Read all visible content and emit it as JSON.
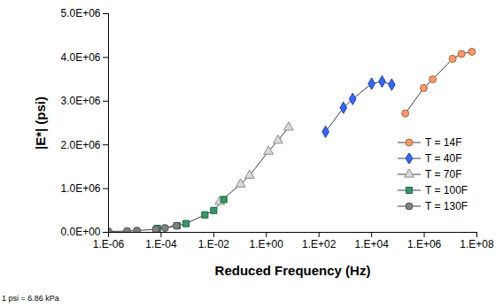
{
  "chart_data": {
    "type": "line",
    "x_label": "Reduced Frequency (Hz)",
    "y_label": "|E*| (psi)",
    "caption": "1 psi = 6.86 kPa",
    "log": "x",
    "grid": false,
    "legend": "right",
    "xlim": [
      1e-06,
      100000000
    ],
    "xticks": [
      {
        "value": 1e-06,
        "label": "1.E-06"
      },
      {
        "value": 0.0001,
        "label": "1.E-04"
      },
      {
        "value": 0.01,
        "label": "1.E-02"
      },
      {
        "value": 1,
        "label": "1.E+00"
      },
      {
        "value": 100,
        "label": "1.E+02"
      },
      {
        "value": 10000,
        "label": "1.E+04"
      },
      {
        "value": 1000000,
        "label": "1.E+06"
      },
      {
        "value": 100000000,
        "label": "1.E+08"
      }
    ],
    "ylim": [
      0,
      5000000
    ],
    "yticks": [
      {
        "value": 0,
        "label": "0.0E+00"
      },
      {
        "value": 1000000,
        "label": "1.0E+06"
      },
      {
        "value": 2000000,
        "label": "2.0E+06"
      },
      {
        "value": 3000000,
        "label": "3.0E+06"
      },
      {
        "value": 4000000,
        "label": "4.0E+06"
      },
      {
        "value": 5000000,
        "label": "5.0E+06"
      }
    ],
    "series": [
      {
        "name": "T = 14F",
        "color": "#ff9966",
        "marker": "circle",
        "x": [
          190000,
          960000,
          2100000,
          12000000,
          26000000,
          65000000
        ],
        "values": [
          2720000,
          3300000,
          3500000,
          3970000,
          4080000,
          4130000
        ]
      },
      {
        "name": "T = 40F",
        "color": "#3366ff",
        "marker": "diamond",
        "x": [
          178,
          850,
          1900,
          10000,
          25000,
          58000
        ],
        "values": [
          2300000,
          2850000,
          3050000,
          3400000,
          3450000,
          3380000
        ]
      },
      {
        "name": "T = 70F",
        "color": "#d9d9d9",
        "marker": "triangle",
        "x": [
          0.017,
          0.105,
          0.23,
          1.2,
          2.75,
          7.0
        ],
        "values": [
          700000,
          1100000,
          1300000,
          1850000,
          2100000,
          2400000
        ]
      },
      {
        "name": "T = 100F",
        "color": "#339966",
        "marker": "square",
        "x": [
          7.2e-05,
          0.00041,
          0.00089,
          0.0046,
          0.01,
          0.024
        ],
        "values": [
          90000,
          150000,
          200000,
          400000,
          500000,
          750000
        ]
      },
      {
        "name": "T = 130F",
        "color": "#808080",
        "marker": "circle",
        "x": [
          1e-06,
          5.1e-06,
          1.2e-05,
          6.3e-05,
          0.00014,
          0.00038
        ],
        "values": [
          20000,
          30000,
          40000,
          70000,
          100000,
          150000
        ]
      }
    ]
  }
}
